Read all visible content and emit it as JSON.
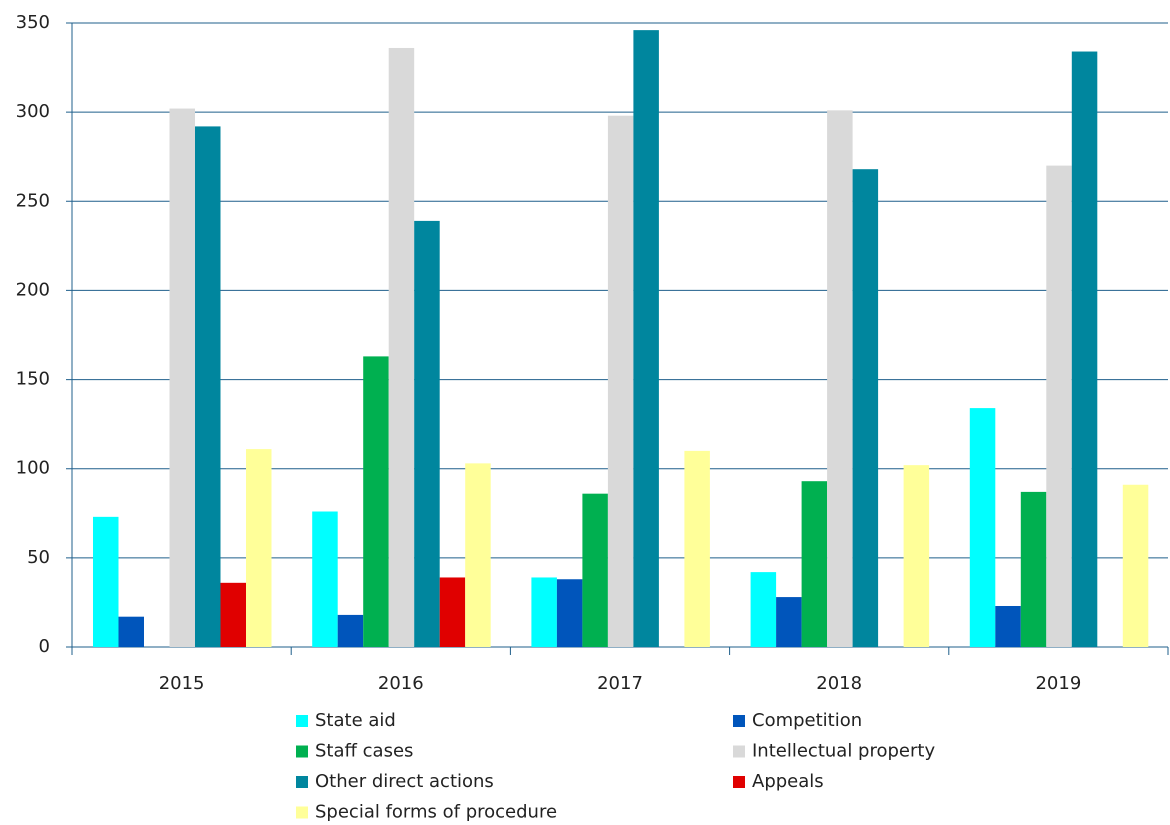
{
  "chart_data": {
    "type": "bar",
    "categories": [
      "2015",
      "2016",
      "2017",
      "2018",
      "2019"
    ],
    "series": [
      {
        "name": "State aid",
        "color": "#00ffff",
        "values": [
          73,
          76,
          39,
          42,
          134
        ]
      },
      {
        "name": "Competition",
        "color": "#0055bb",
        "values": [
          17,
          18,
          38,
          28,
          23
        ]
      },
      {
        "name": "Staff cases",
        "color": "#00b050",
        "values": [
          0,
          163,
          86,
          93,
          87
        ]
      },
      {
        "name": "Intellectual property",
        "color": "#d9d9d9",
        "values": [
          302,
          336,
          298,
          301,
          270
        ]
      },
      {
        "name": "Other direct actions",
        "color": "#00869e",
        "values": [
          292,
          239,
          346,
          268,
          334
        ]
      },
      {
        "name": "Appeals",
        "color": "#e00000",
        "values": [
          36,
          39,
          0,
          0,
          0
        ]
      },
      {
        "name": "Special forms of procedure",
        "color": "#ffff99",
        "values": [
          111,
          103,
          110,
          102,
          91
        ]
      }
    ],
    "ylim": [
      0,
      350
    ],
    "yticks": [
      0,
      50,
      100,
      150,
      200,
      250,
      300,
      350
    ],
    "grid": true,
    "legend": "bottom"
  }
}
